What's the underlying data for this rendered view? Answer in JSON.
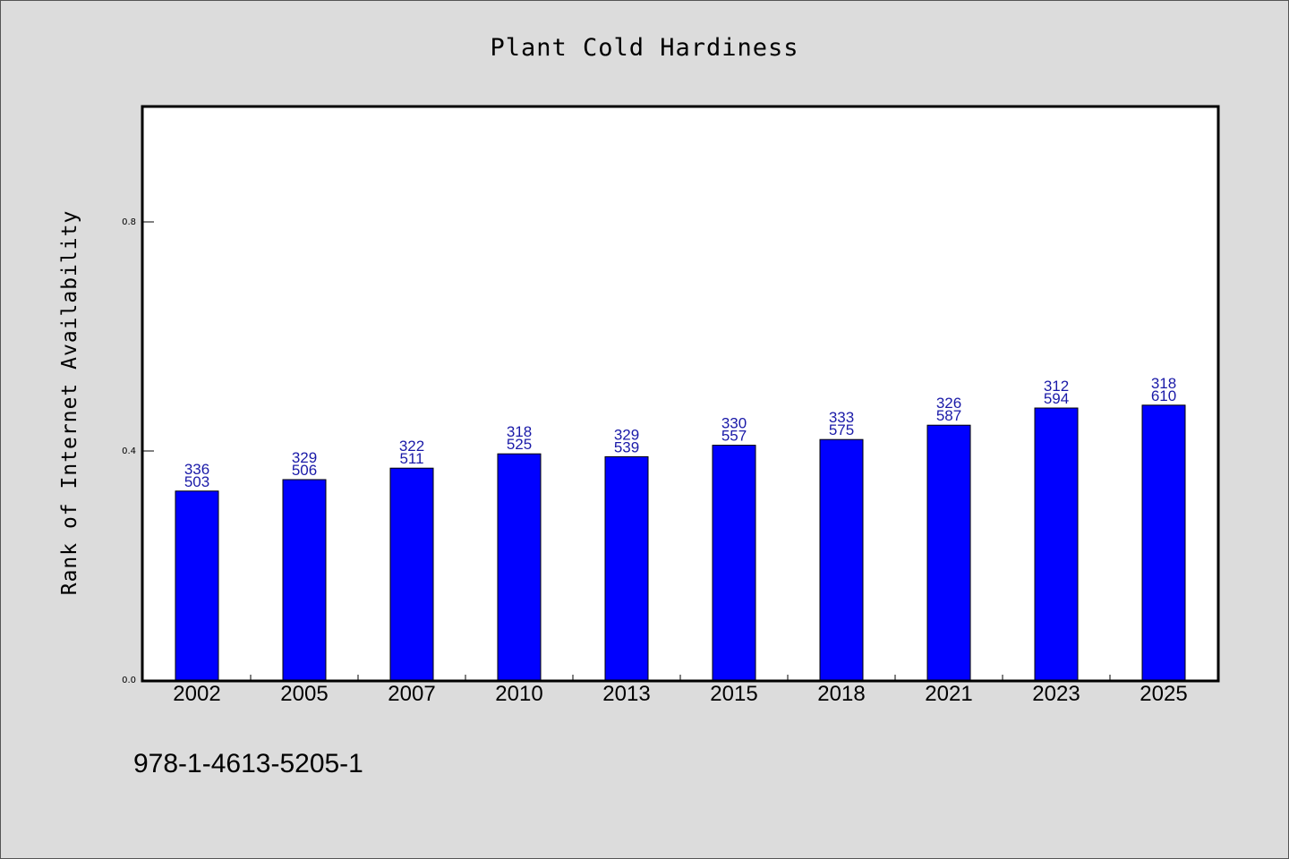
{
  "chart_data": {
    "type": "bar",
    "title": "Plant Cold Hardiness",
    "xlabel": "",
    "ylabel": "Rank of Internet Availability",
    "ylim": [
      0,
      1.0
    ],
    "yticks": [
      0.0,
      0.4,
      0.8
    ],
    "ytick_labels": [
      "0.0",
      "0.4",
      "0.8"
    ],
    "grid": false,
    "categories": [
      "2002",
      "2005",
      "2007",
      "2010",
      "2013",
      "2015",
      "2018",
      "2021",
      "2023",
      "2025"
    ],
    "values": [
      0.33,
      0.35,
      0.37,
      0.395,
      0.39,
      0.41,
      0.42,
      0.445,
      0.475,
      0.48
    ],
    "data_labels": [
      [
        "336",
        "503"
      ],
      [
        "329",
        "506"
      ],
      [
        "322",
        "511"
      ],
      [
        "318",
        "525"
      ],
      [
        "329",
        "539"
      ],
      [
        "330",
        "557"
      ],
      [
        "333",
        "575"
      ],
      [
        "326",
        "587"
      ],
      [
        "312",
        "594"
      ],
      [
        "318",
        "610"
      ]
    ],
    "colors": {
      "bar_fill": "#0000ff",
      "bar_stroke": "#000000",
      "data_label": "#1a1aa8",
      "plot_background": "#ffffff",
      "figure_background": "#dcdcdc"
    }
  },
  "footnote": "978-1-4613-5205-1"
}
